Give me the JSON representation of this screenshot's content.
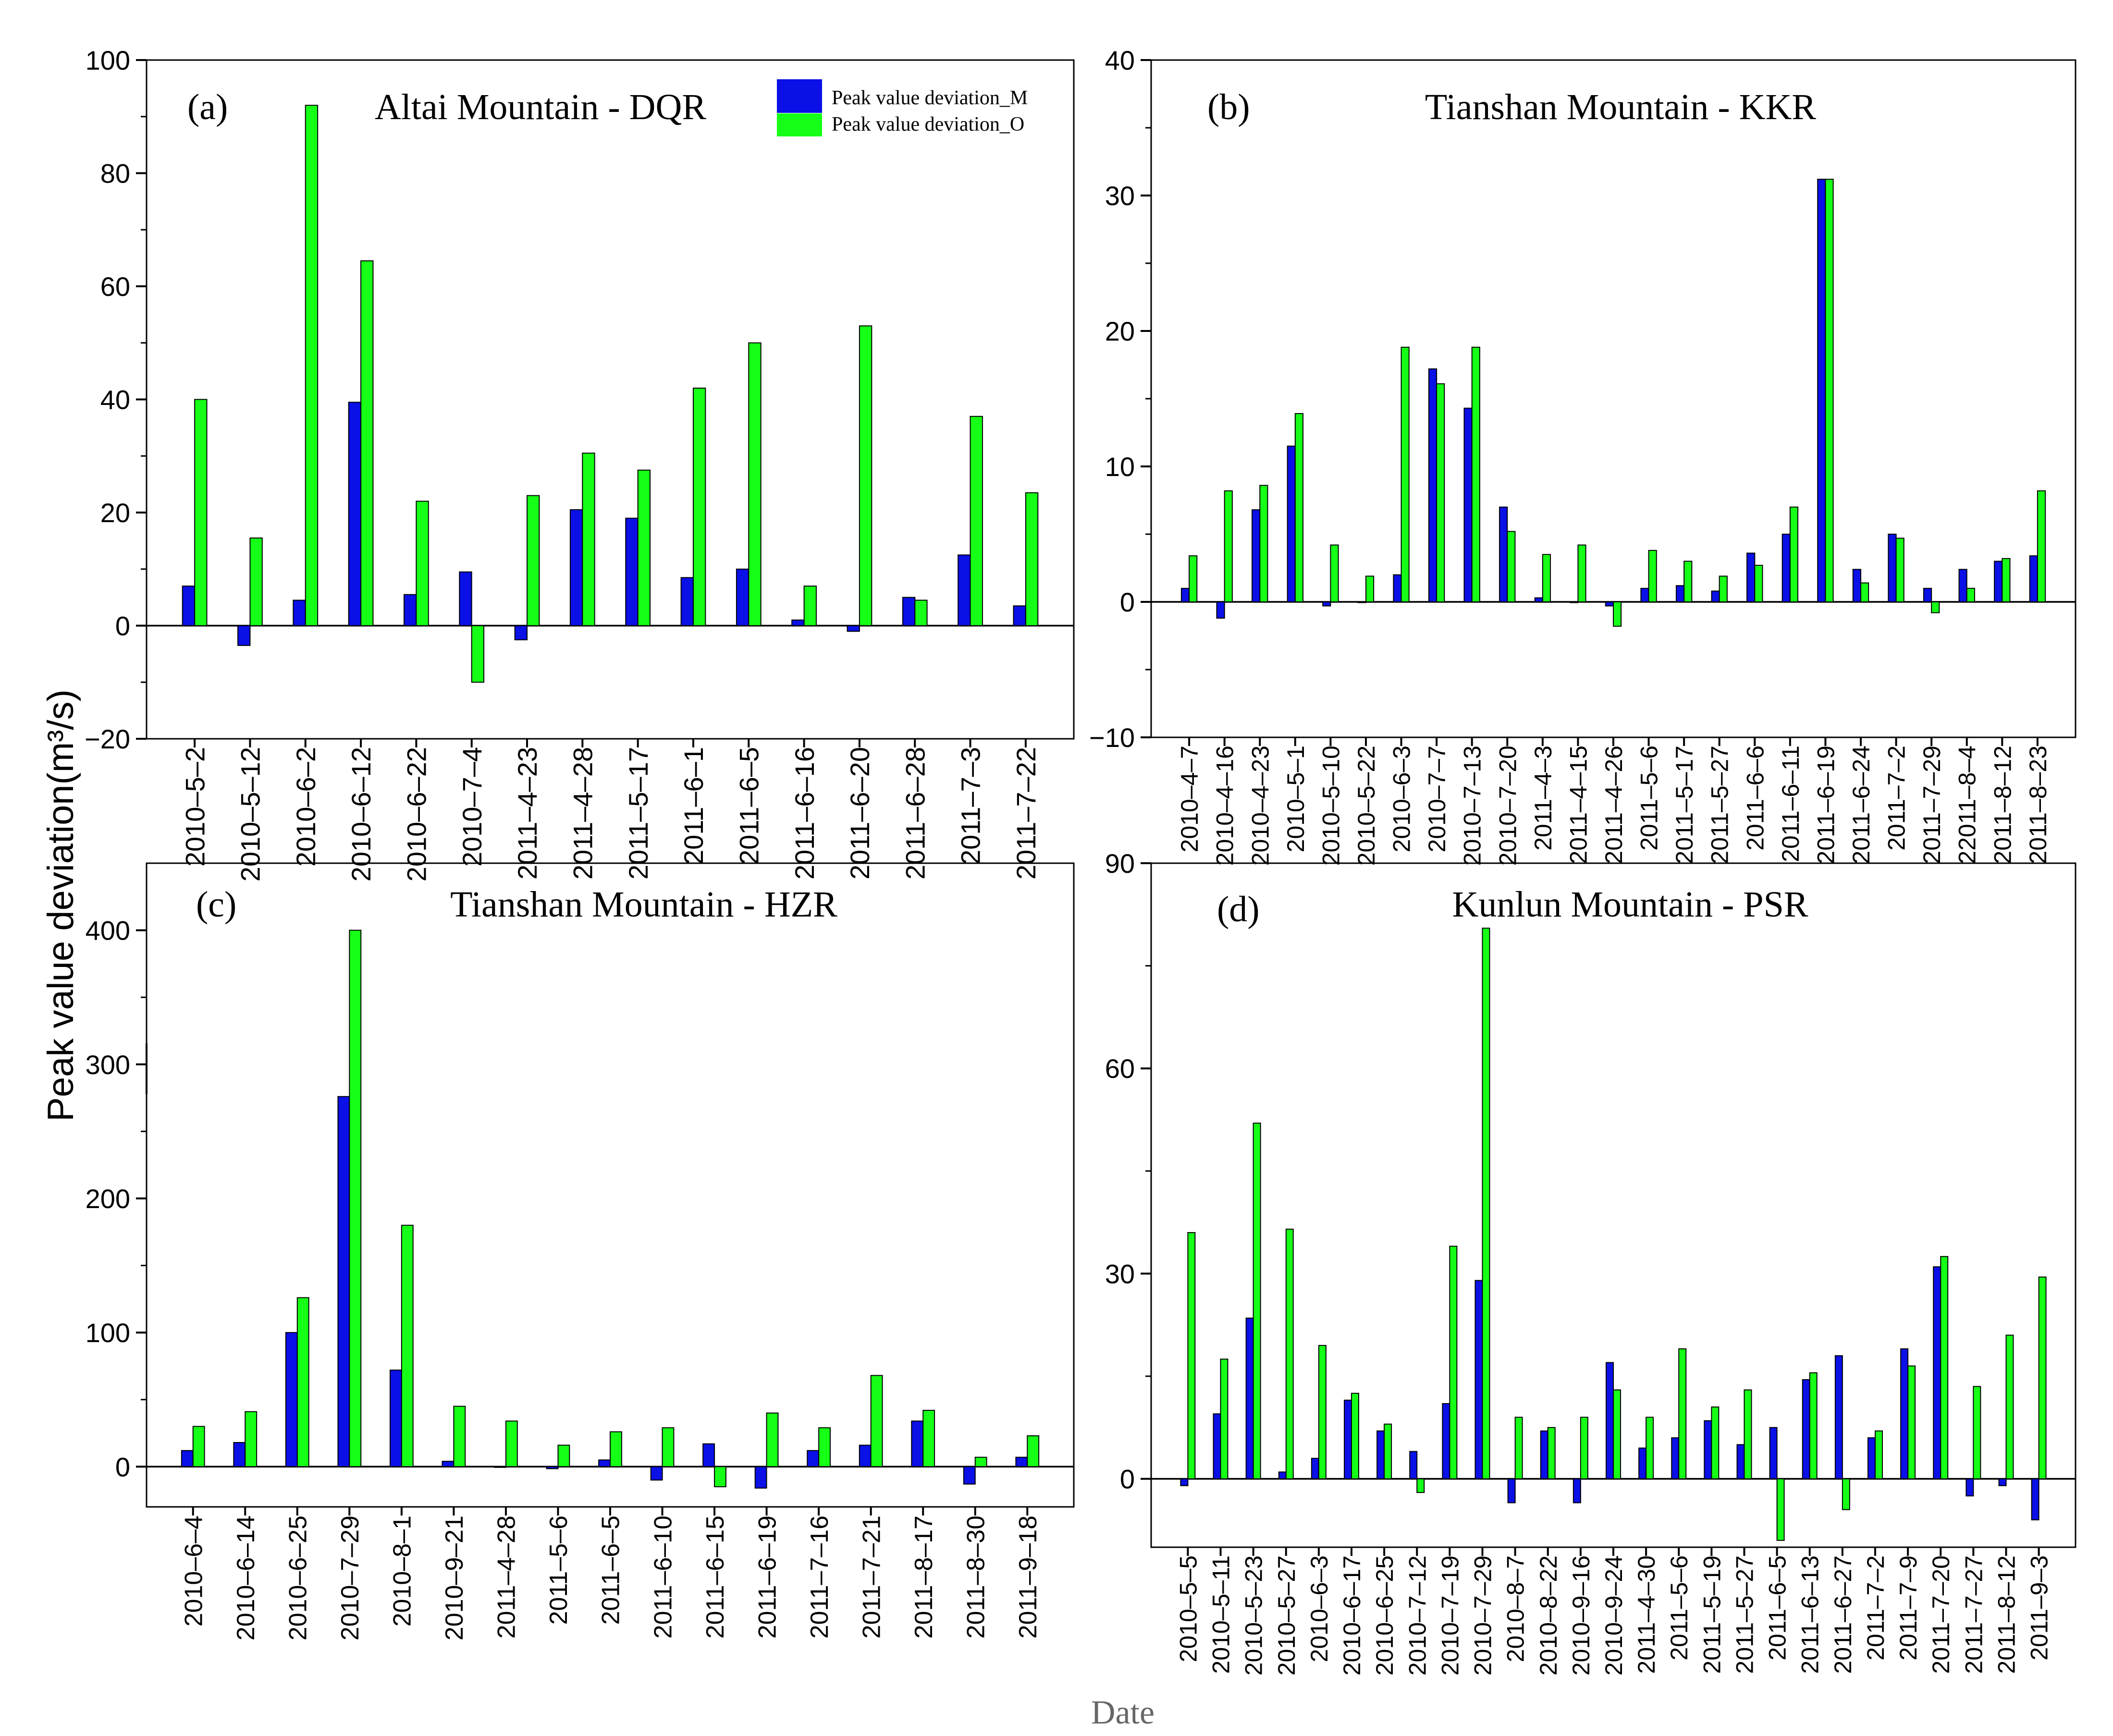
{
  "figure": {
    "ylabel": "Peak value deviation(m³/s)",
    "xlabel": "Date",
    "legend": {
      "m": "Peak value deviation_M",
      "o": "Peak value deviation_O"
    },
    "colors": {
      "m": "#0a10e6",
      "o": "#16ff16"
    }
  },
  "chart_data": [
    {
      "type": "bar",
      "panel": "(a)",
      "title": "Altai Mountain - DQR",
      "ylim": [
        -20,
        100
      ],
      "yticks": [
        -20,
        0,
        20,
        40,
        60,
        80,
        100
      ],
      "categories": [
        "2010-5-2",
        "2010-5-12",
        "2010-6-2",
        "2010-6-12",
        "2010-6-22",
        "2010-7-4",
        "2011-4-23",
        "2011-4-28",
        "2011-5-17",
        "2011-6-1",
        "2011-6-5",
        "2011-6-16",
        "2011-6-20",
        "2011-6-28",
        "2011-7-3",
        "2011-7-22"
      ],
      "series": [
        {
          "name": "Peak value deviation_M",
          "values": [
            7,
            -3.5,
            4.5,
            39.5,
            5.5,
            9.5,
            -2.5,
            20.5,
            19,
            8.5,
            10,
            1,
            -1,
            5,
            12.5,
            3.5
          ]
        },
        {
          "name": "Peak value deviation_O",
          "values": [
            40,
            15.5,
            92,
            64.5,
            22,
            -10,
            23,
            30.5,
            27.5,
            42,
            50,
            7,
            53,
            4.5,
            37,
            23.5
          ]
        }
      ]
    },
    {
      "type": "bar",
      "panel": "(b)",
      "title": "Tianshan Mountain - KKR",
      "ylim": [
        -10,
        40
      ],
      "yticks": [
        -10,
        0,
        10,
        20,
        30,
        40
      ],
      "categories": [
        "2010-4-7",
        "2010-4-16",
        "2010-4-23",
        "2010-5-1",
        "2010-5-10",
        "2010-5-22",
        "2010-6-3",
        "2010-7-7",
        "2010-7-13",
        "2010-7-20",
        "2011-4-3",
        "2011-4-15",
        "2011-4-26",
        "2011-5-6",
        "2011-5-17",
        "2011-5-27",
        "2011-6-6",
        "2011-6-11",
        "2011-6-19",
        "2011-6-24",
        "2011-7-2",
        "2011-7-29",
        "22011-8-4",
        "2011-8-12",
        "2011-8-23"
      ],
      "series": [
        {
          "name": "Peak value deviation_M",
          "values": [
            1,
            -1.2,
            6.8,
            11.5,
            -0.3,
            0,
            2,
            17.2,
            14.3,
            7,
            0.3,
            0,
            -0.3,
            1,
            1.2,
            0.8,
            3.6,
            5,
            31.2,
            2.4,
            5,
            1,
            2.4,
            3,
            3.4
          ]
        },
        {
          "name": "Peak value deviation_O",
          "values": [
            3.4,
            8.2,
            8.6,
            13.9,
            4.2,
            1.9,
            18.8,
            16.1,
            18.8,
            5.2,
            3.5,
            4.2,
            -1.8,
            3.8,
            3,
            1.9,
            2.7,
            7,
            31.2,
            1.4,
            4.7,
            -0.8,
            1,
            3.2,
            8.2
          ]
        }
      ]
    },
    {
      "type": "bar",
      "panel": "(c)",
      "title": "Tianshan Mountain - HZR",
      "ylim": [
        -30,
        450
      ],
      "yticks": [
        0,
        100,
        200,
        300,
        400
      ],
      "categories": [
        "2010-6-4",
        "2010-6-14",
        "2010-6-25",
        "2010-7-29",
        "2010-8-1",
        "2010-9-21",
        "2011-4-28",
        "2011-5-6",
        "2011-6-5",
        "2011-6-10",
        "2011-6-15",
        "2011-6-19",
        "2011-7-16",
        "2011-7-21",
        "2011-8-17",
        "2011-8-30",
        "2011-9-18"
      ],
      "series": [
        {
          "name": "Peak value deviation_M",
          "values": [
            12,
            18,
            100,
            276,
            72,
            4,
            0,
            -1.5,
            5,
            -10,
            17,
            -16,
            12,
            16,
            34,
            -13,
            7
          ]
        },
        {
          "name": "Peak value deviation_O",
          "values": [
            30,
            41,
            126,
            400,
            180,
            45,
            34,
            16,
            26,
            29,
            -15,
            40,
            29,
            68,
            42,
            7,
            23
          ]
        }
      ]
    },
    {
      "type": "bar",
      "panel": "(d)",
      "title": "Kunlun Mountain - PSR",
      "ylim": [
        -10,
        90
      ],
      "yticks": [
        0,
        30,
        60,
        90
      ],
      "categories": [
        "2010-5-5",
        "2010-5-11",
        "2010-5-23",
        "2010-5-27",
        "2010-6-3",
        "2010-6-17",
        "2010-6-25",
        "2010-7-12",
        "2010-7-19",
        "2010-7-29",
        "2010-8-7",
        "2010-8-22",
        "2010-9-16",
        "2010-9-24",
        "2011-4-30",
        "2011-5-6",
        "2011-5-19",
        "2011-5-27",
        "2011-6-5",
        "2011-6-13",
        "2011-6-27",
        "2011-7-2",
        "2011-7-9",
        "2011-7-20",
        "2011-7-27",
        "2011-8-12",
        "2011-9-3"
      ],
      "series": [
        {
          "name": "Peak value deviation_M",
          "values": [
            -1,
            9.5,
            23.5,
            1,
            3,
            11.5,
            7,
            4,
            11,
            29,
            -3.5,
            7,
            -3.5,
            17,
            4.5,
            6,
            8.5,
            5,
            7.5,
            14.5,
            18,
            6,
            19,
            31,
            -2.5,
            -1,
            -6
          ]
        },
        {
          "name": "Peak value deviation_O",
          "values": [
            36,
            17.5,
            52,
            36.5,
            19.5,
            12.5,
            8,
            -2,
            34,
            80.5,
            9,
            7.5,
            9,
            13,
            9,
            19,
            10.5,
            13,
            -9,
            15.5,
            -4.5,
            7,
            16.5,
            32.5,
            13.5,
            21,
            29.5
          ]
        }
      ]
    }
  ]
}
